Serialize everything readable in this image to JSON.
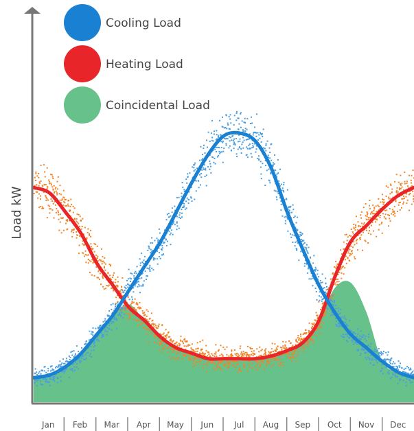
{
  "chart_data": {
    "type": "area",
    "title": "",
    "xlabel": "",
    "ylabel": "Load kW",
    "ylim": [
      0,
      100
    ],
    "grid": false,
    "legend_position": "top-left",
    "categories": [
      "Jan",
      "Feb",
      "Mar",
      "Apr",
      "May",
      "Jun",
      "Jul",
      "Aug",
      "Sep",
      "Oct",
      "Nov",
      "Dec"
    ],
    "series": [
      {
        "name": "Cooling Load",
        "color": "#1a80d2",
        "scatter_color": "#4a9ee0",
        "mark": "line with scattered hourly points",
        "x": [
          0.0,
          0.5,
          1.0,
          1.5,
          2.0,
          2.5,
          3.0,
          3.5,
          4.0,
          4.5,
          5.0,
          5.5,
          6.0,
          6.5,
          7.0,
          7.5,
          8.0,
          8.5,
          9.0,
          9.5,
          10.0,
          10.5,
          11.0,
          11.5,
          12.0
        ],
        "values": [
          9,
          10,
          13,
          18,
          25,
          32,
          41,
          50,
          59,
          70,
          81,
          91,
          98,
          99,
          96,
          86,
          70,
          56,
          43,
          33,
          25,
          20,
          15,
          11,
          9
        ]
      },
      {
        "name": "Heating Load",
        "color": "#e8262a",
        "scatter_color": "#f08428",
        "mark": "line with scattered hourly points",
        "x": [
          0.0,
          0.5,
          1.0,
          1.5,
          2.0,
          2.5,
          3.0,
          3.5,
          4.0,
          4.5,
          5.0,
          5.5,
          6.0,
          6.5,
          7.0,
          7.5,
          8.0,
          8.5,
          9.0,
          9.5,
          10.0,
          10.5,
          11.0,
          11.5,
          12.0
        ],
        "values": [
          79,
          77,
          70,
          62,
          51,
          43,
          35,
          30,
          24,
          20,
          18,
          16,
          16,
          16,
          16,
          17,
          19,
          22,
          30,
          46,
          59,
          65,
          71,
          76,
          79
        ]
      },
      {
        "name": "Coincidental Load",
        "color": "#66c18a",
        "mark": "filled area",
        "x": [
          0.0,
          0.5,
          1.0,
          1.5,
          2.0,
          2.5,
          3.0,
          3.5,
          4.0,
          4.5,
          5.0,
          5.5,
          6.0,
          6.5,
          7.0,
          7.5,
          8.0,
          8.5,
          9.0,
          9.5,
          10.0,
          10.5,
          11.0,
          11.5,
          12.0
        ],
        "values": [
          9,
          10,
          13,
          18,
          25,
          32,
          36,
          30,
          24,
          20,
          18,
          16,
          16,
          16,
          16,
          17,
          19,
          22,
          30,
          42,
          44,
          33,
          15,
          11,
          9
        ]
      }
    ]
  }
}
